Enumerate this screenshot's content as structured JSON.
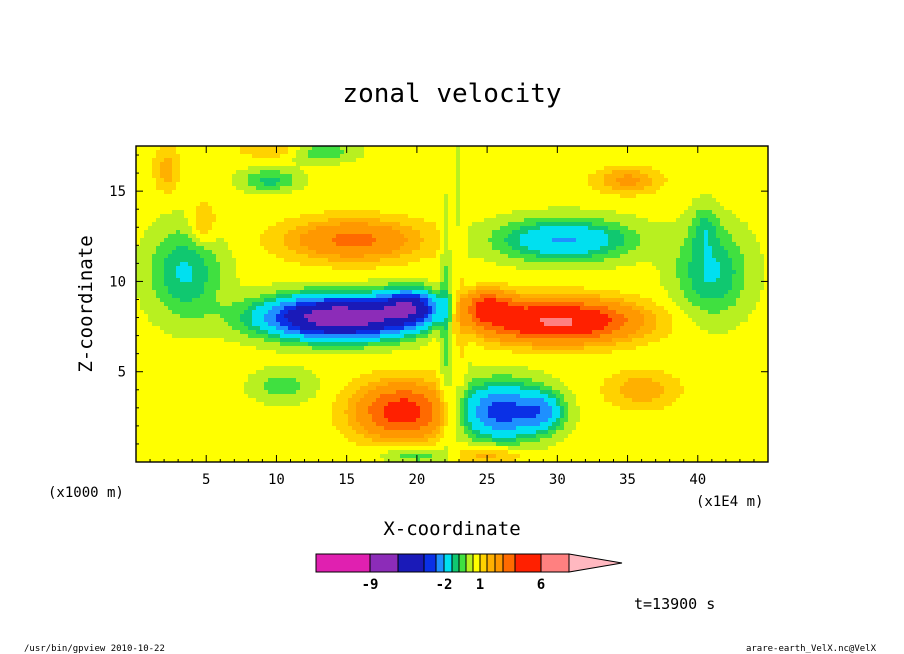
{
  "chart_data": {
    "type": "heatmap",
    "title": "zonal velocity",
    "xlabel": "X-coordinate",
    "ylabel": "Z-coordinate",
    "x_unit": "(x1E4 m)",
    "y_unit": "(x1000 m)",
    "xlim": [
      0,
      45
    ],
    "ylim": [
      0,
      17.5
    ],
    "x_ticks": [
      "5",
      "10",
      "15",
      "20",
      "25",
      "30",
      "35",
      "40"
    ],
    "y_ticks": [
      "5",
      "10",
      "15"
    ],
    "colorbar": {
      "labels": [
        {
          "text": "-9",
          "level": -9
        },
        {
          "text": "-2",
          "level": -2
        },
        {
          "text": "1",
          "level": 1
        },
        {
          "text": "6",
          "level": 6
        }
      ],
      "levels": [
        -15,
        -9,
        -6,
        -4,
        -3,
        -2,
        -1,
        -0.5,
        0,
        0.5,
        1,
        1.5,
        2,
        3,
        4,
        6,
        9,
        15
      ],
      "colors": [
        "#e020b0",
        "#8c2cb8",
        "#1a1ab8",
        "#0a30e6",
        "#1e90ff",
        "#00e0f0",
        "#10c870",
        "#40e040",
        "#b8f020",
        "#ffff00",
        "#ffd200",
        "#ffb000",
        "#ff9800",
        "#ff6a00",
        "#ff2000",
        "#ff8080",
        "#ffb8c0"
      ]
    },
    "field": {
      "grid": "u-wind in m/s on x (x1E4 m) by z (x1000 m)",
      "features": [
        {
          "kind": "negative core",
          "x": 14,
          "z": 8.0,
          "min": -9
        },
        {
          "kind": "positive core",
          "x": 31,
          "z": 7.8,
          "max": 6
        },
        {
          "kind": "positive lobe",
          "x": 18.5,
          "z": 2.8,
          "max": 4
        },
        {
          "kind": "negative lobe",
          "x": 26,
          "z": 2.8,
          "min": -4
        },
        {
          "kind": "positive band",
          "x": 15,
          "z": 12.3,
          "max": 3
        },
        {
          "kind": "negative band",
          "x": 31,
          "z": 12.3,
          "min": -3
        }
      ]
    },
    "time_label": "t=13900 s"
  },
  "footer": {
    "left": "/usr/bin/gpview  2010-10-22",
    "right": "arare-earth_VelX.nc@VelX"
  },
  "colors": {
    "background": "#ffffff",
    "frame": "#000000"
  }
}
